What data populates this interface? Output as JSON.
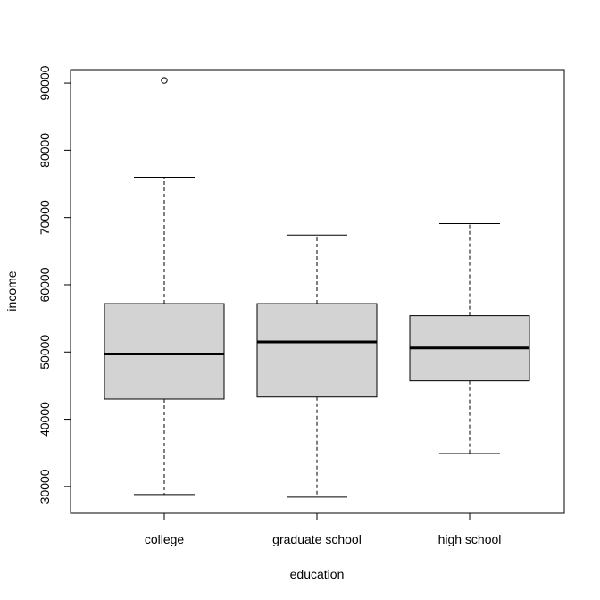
{
  "chart_data": {
    "type": "box",
    "xlabel": "education",
    "ylabel": "income",
    "categories": [
      "college",
      "graduate school",
      "high school"
    ],
    "ylim": [
      26000,
      92000
    ],
    "yticks": [
      30000,
      40000,
      50000,
      60000,
      70000,
      80000,
      90000
    ],
    "ytick_labels": [
      "30000",
      "40000",
      "50000",
      "60000",
      "70000",
      "80000",
      "90000"
    ],
    "box_fill": "#d3d3d3",
    "boxes": [
      {
        "category": "college",
        "whisker_low": 28800,
        "q1": 43000,
        "median": 49700,
        "q3": 57200,
        "whisker_high": 76000,
        "outliers": [
          90400
        ]
      },
      {
        "category": "graduate school",
        "whisker_low": 28400,
        "q1": 43300,
        "median": 51500,
        "q3": 57200,
        "whisker_high": 67400,
        "outliers": []
      },
      {
        "category": "high school",
        "whisker_low": 34900,
        "q1": 45700,
        "median": 50600,
        "q3": 55400,
        "whisker_high": 69100,
        "outliers": []
      }
    ]
  }
}
